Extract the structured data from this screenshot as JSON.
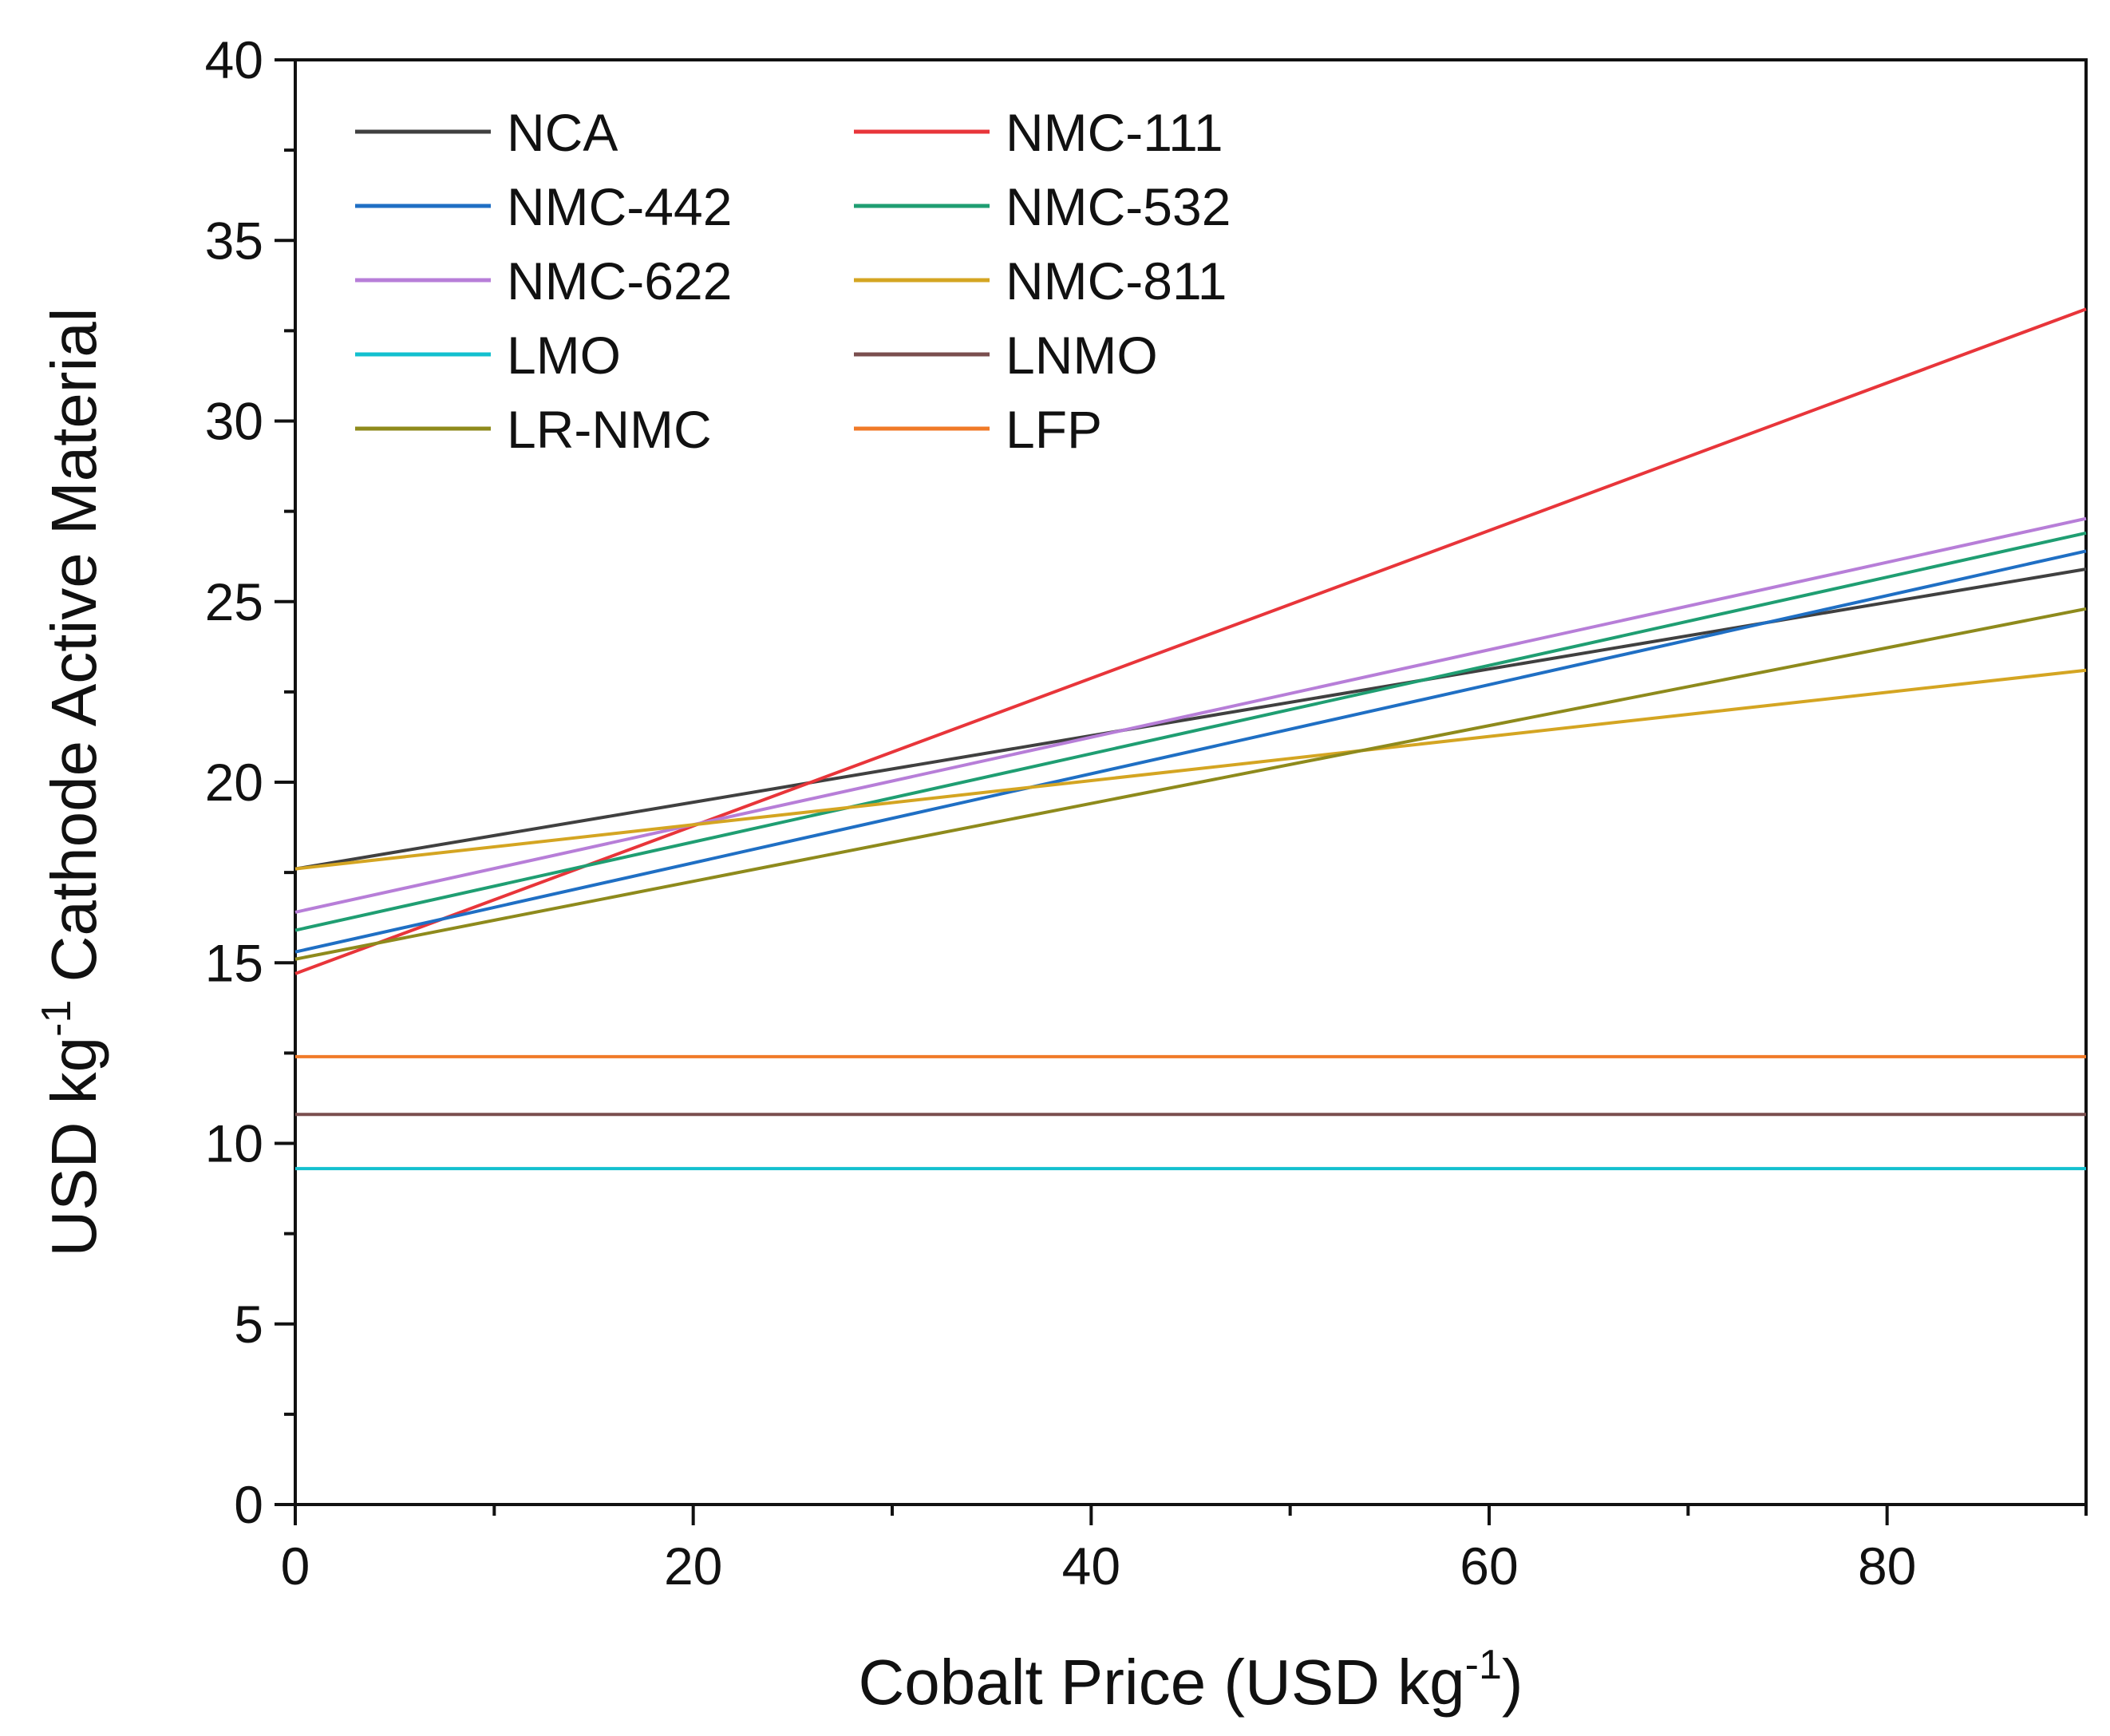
{
  "chart_data": {
    "type": "line",
    "xlabel": "Cobalt Price (USD kg",
    "xlabel_sup": "-1",
    "xlabel_end": ")",
    "ylabel": "USD kg",
    "ylabel_sup": "-1",
    "ylabel_end": " Cathode Active Material",
    "xlim": [
      0,
      90
    ],
    "ylim": [
      0,
      40
    ],
    "xticks": [
      0,
      20,
      40,
      60,
      80
    ],
    "yticks": [
      0,
      5,
      10,
      15,
      20,
      25,
      30,
      35,
      40
    ],
    "x": [
      0,
      90
    ],
    "series": [
      {
        "name": "NCA",
        "color": "#404040",
        "values": [
          17.6,
          25.9
        ]
      },
      {
        "name": "NMC-111",
        "color": "#e8353a",
        "values": [
          14.7,
          33.1
        ]
      },
      {
        "name": "NMC-442",
        "color": "#1f6fc4",
        "values": [
          15.3,
          26.4
        ]
      },
      {
        "name": "NMC-532",
        "color": "#1f9e72",
        "values": [
          15.9,
          26.9
        ]
      },
      {
        "name": "NMC-622",
        "color": "#b77ed8",
        "values": [
          16.4,
          27.3
        ]
      },
      {
        "name": "NMC-811",
        "color": "#d4a522",
        "values": [
          17.6,
          23.1
        ]
      },
      {
        "name": "LMO",
        "color": "#13c0cf",
        "values": [
          9.3,
          9.3
        ]
      },
      {
        "name": "LNMO",
        "color": "#7a4e4e",
        "values": [
          10.8,
          10.8
        ]
      },
      {
        "name": "LR-NMC",
        "color": "#8e8a1c",
        "values": [
          15.1,
          24.8
        ]
      },
      {
        "name": "LFP",
        "color": "#f07a28",
        "values": [
          12.4,
          12.4
        ]
      }
    ]
  }
}
